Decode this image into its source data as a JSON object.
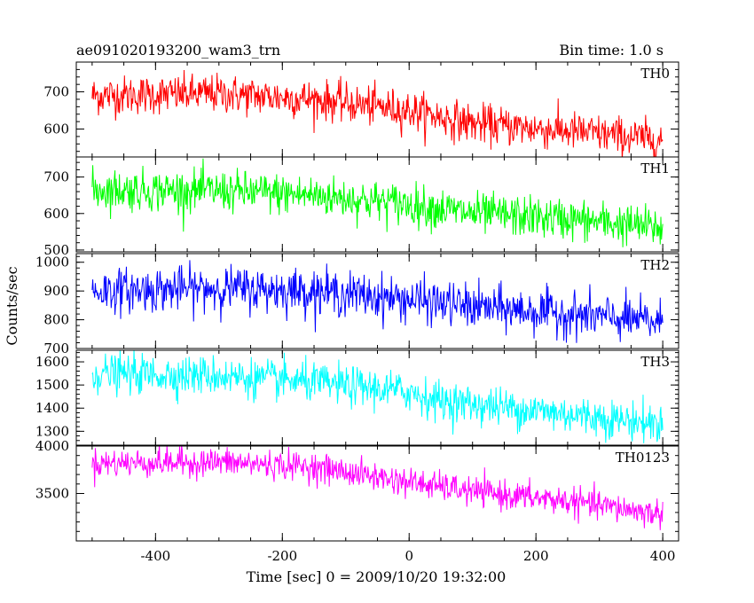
{
  "title_left": "ae091020193200_wam3_trn",
  "title_right": "Bin time: 1.0 s",
  "xlabel": "Time [sec] 0 = 2009/10/20 19:32:00",
  "ylabel": "Counts/sec",
  "chart_data": {
    "type": "line",
    "x_range": [
      -500,
      400
    ],
    "xlim": [
      -525,
      425
    ],
    "x_ticks": [
      "-400",
      "-200",
      "0",
      "200",
      "400"
    ],
    "x_tick_values": [
      -400,
      -200,
      0,
      200,
      400
    ],
    "grid": false,
    "panels": [
      {
        "name": "TH0",
        "color": "#ff0000",
        "ylim": [
          525,
          780
        ],
        "y_ticks": [
          "600",
          "700"
        ],
        "y_tick_values": [
          600,
          700
        ],
        "trend": [
          [
            -500,
            690
          ],
          [
            -300,
            695
          ],
          [
            -150,
            680
          ],
          [
            0,
            650
          ],
          [
            100,
            615
          ],
          [
            250,
            595
          ],
          [
            400,
            570
          ]
        ],
        "noise": 26
      },
      {
        "name": "TH1",
        "color": "#00ff00",
        "ylim": [
          495,
          755
        ],
        "y_ticks": [
          "500",
          "600",
          "700"
        ],
        "y_tick_values": [
          500,
          600,
          700
        ],
        "trend": [
          [
            -500,
            665
          ],
          [
            -300,
            662
          ],
          [
            -150,
            650
          ],
          [
            0,
            625
          ],
          [
            100,
            600
          ],
          [
            250,
            585
          ],
          [
            400,
            560
          ]
        ],
        "noise": 28
      },
      {
        "name": "TH2",
        "color": "#0000ff",
        "ylim": [
          700,
          1030
        ],
        "y_ticks": [
          "700",
          "800",
          "900",
          "1000"
        ],
        "y_tick_values": [
          700,
          800,
          900,
          1000
        ],
        "trend": [
          [
            -500,
            900
          ],
          [
            -300,
            910
          ],
          [
            -150,
            900
          ],
          [
            0,
            870
          ],
          [
            100,
            845
          ],
          [
            250,
            820
          ],
          [
            400,
            790
          ]
        ],
        "noise": 38
      },
      {
        "name": "TH3",
        "color": "#00ffff",
        "ylim": [
          1240,
          1650
        ],
        "y_ticks": [
          "1300",
          "1400",
          "1500",
          "1600"
        ],
        "y_tick_values": [
          1300,
          1400,
          1500,
          1600
        ],
        "trend": [
          [
            -500,
            1550
          ],
          [
            -300,
            1540
          ],
          [
            -150,
            1510
          ],
          [
            0,
            1470
          ],
          [
            50,
            1430
          ],
          [
            200,
            1390
          ],
          [
            400,
            1330
          ]
        ],
        "noise": 42
      },
      {
        "name": "TH0123",
        "color": "#ff00ff",
        "ylim": [
          3000,
          4000
        ],
        "y_ticks": [
          "3500",
          "4000"
        ],
        "y_tick_values": [
          3500,
          4000
        ],
        "trend": [
          [
            -500,
            3820
          ],
          [
            -300,
            3830
          ],
          [
            -150,
            3780
          ],
          [
            0,
            3620
          ],
          [
            100,
            3520
          ],
          [
            250,
            3420
          ],
          [
            400,
            3280
          ]
        ],
        "noise": 75
      }
    ]
  }
}
